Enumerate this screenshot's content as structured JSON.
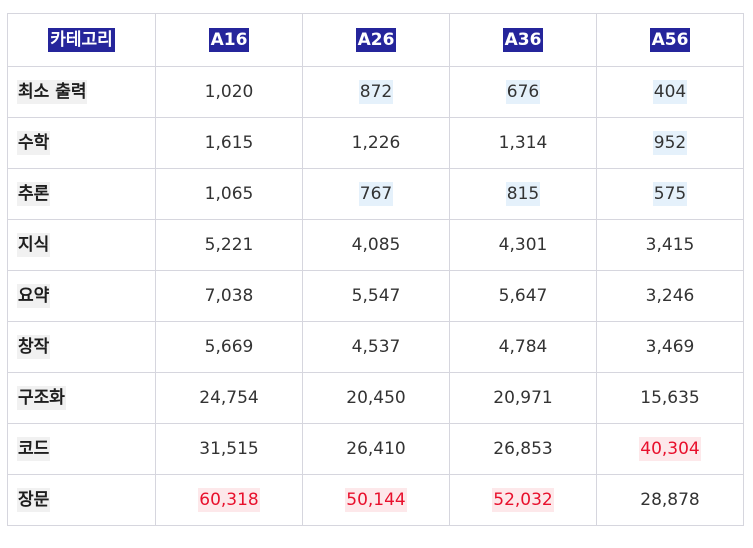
{
  "headers": [
    "카테고리",
    "A16",
    "A26",
    "A36",
    "A56"
  ],
  "rows": [
    {
      "category": "최소 출력",
      "values": [
        "1,020",
        "872",
        "676",
        "404"
      ],
      "hl": [
        "",
        "low",
        "low",
        "low"
      ]
    },
    {
      "category": "수학",
      "values": [
        "1,615",
        "1,226",
        "1,314",
        "952"
      ],
      "hl": [
        "",
        "",
        "",
        "low"
      ]
    },
    {
      "category": "추론",
      "values": [
        "1,065",
        "767",
        "815",
        "575"
      ],
      "hl": [
        "",
        "low",
        "low",
        "low"
      ]
    },
    {
      "category": "지식",
      "values": [
        "5,221",
        "4,085",
        "4,301",
        "3,415"
      ],
      "hl": [
        "",
        "",
        "",
        ""
      ]
    },
    {
      "category": "요약",
      "values": [
        "7,038",
        "5,547",
        "5,647",
        "3,246"
      ],
      "hl": [
        "",
        "",
        "",
        ""
      ]
    },
    {
      "category": "창작",
      "values": [
        "5,669",
        "4,537",
        "4,784",
        "3,469"
      ],
      "hl": [
        "",
        "",
        "",
        ""
      ]
    },
    {
      "category": "구조화",
      "values": [
        "24,754",
        "20,450",
        "20,971",
        "15,635"
      ],
      "hl": [
        "",
        "",
        "",
        ""
      ]
    },
    {
      "category": "코드",
      "values": [
        "31,515",
        "26,410",
        "26,853",
        "40,304"
      ],
      "hl": [
        "",
        "",
        "",
        "high"
      ]
    },
    {
      "category": "장문",
      "values": [
        "60,318",
        "50,144",
        "52,032",
        "28,878"
      ],
      "hl": [
        "high",
        "high",
        "high",
        ""
      ]
    }
  ],
  "colors": {
    "header_bg": "#25259b",
    "low_highlight": "#e5f1fb",
    "high_highlight": "#fde8ea",
    "high_text": "#e8102c"
  }
}
